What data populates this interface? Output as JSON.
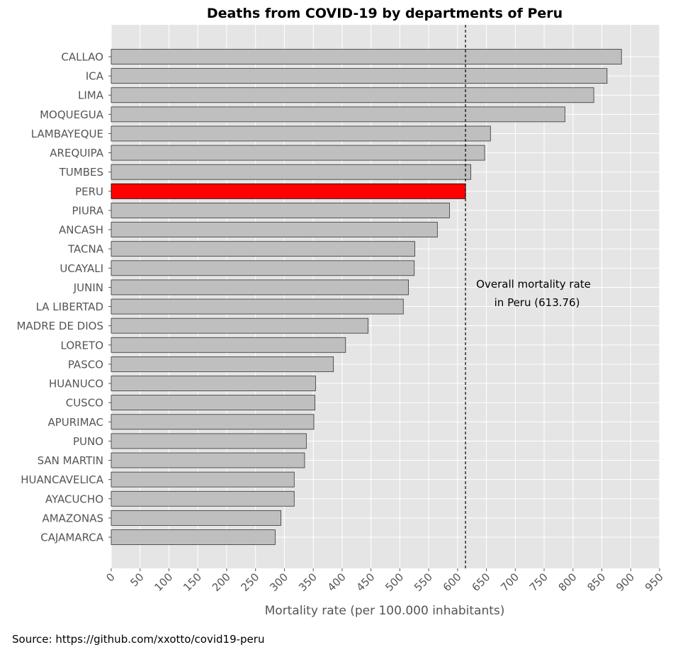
{
  "chart_data": {
    "type": "bar",
    "orientation": "horizontal",
    "title": "Deaths from COVID-19 by departments of Peru",
    "xlabel": "Mortality rate (per 100.000 inhabitants)",
    "ylabel": "",
    "xlim": [
      0,
      950
    ],
    "xticks": [
      0,
      50,
      100,
      150,
      200,
      250,
      300,
      350,
      400,
      450,
      500,
      550,
      600,
      650,
      700,
      750,
      800,
      850,
      900,
      950
    ],
    "grid": true,
    "categories": [
      "CALLAO",
      "ICA",
      "LIMA",
      "MOQUEGUA",
      "LAMBAYEQUE",
      "AREQUIPA",
      "TUMBES",
      "PERU",
      "PIURA",
      "ANCASH",
      "TACNA",
      "UCAYALI",
      "JUNIN",
      "LA LIBERTAD",
      "MADRE DE DIOS",
      "LORETO",
      "PASCO",
      "HUANUCO",
      "CUSCO",
      "APURIMAC",
      "PUNO",
      "SAN MARTIN",
      "HUANCAVELICA",
      "AYACUCHO",
      "AMAZONAS",
      "CAJAMARCA"
    ],
    "values": [
      884,
      859,
      836,
      786,
      657,
      647,
      623,
      613.76,
      586,
      565,
      526,
      525,
      515,
      506,
      445,
      406,
      385,
      354,
      353,
      351,
      338,
      335,
      317,
      317,
      294,
      284
    ],
    "highlight_category": "PERU",
    "colors": {
      "bar": "#bfbfbf",
      "highlight": "#ff0000",
      "edge": "#333333",
      "background": "#e5e5e5",
      "grid": "#ffffff",
      "refline": "#000000"
    },
    "reference_line": {
      "value": 613.76,
      "style": "dashed",
      "label_lines": [
        "Overall mortality rate",
        "in Peru (613.76)"
      ]
    }
  },
  "footer": {
    "source": "Source: https://github.com/xxotto/covid19-peru"
  }
}
